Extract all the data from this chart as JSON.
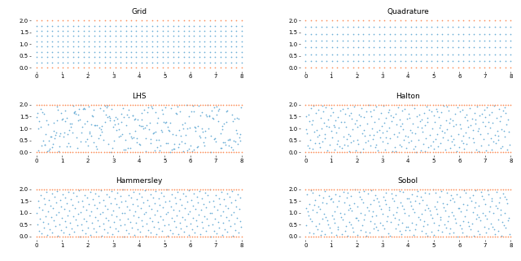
{
  "titles": [
    "Grid",
    "Quadrature",
    "LHS",
    "Halton",
    "Hammersley",
    "Sobol"
  ],
  "xlim": [
    -0.2,
    8.2
  ],
  "ylim": [
    -0.15,
    2.2
  ],
  "xticks": [
    0,
    1,
    2,
    3,
    4,
    5,
    6,
    7,
    8
  ],
  "yticks": [
    0.0,
    0.5,
    1.0,
    1.5,
    2.0
  ],
  "blue_color": "#6baed6",
  "red_color": "#fc8d59",
  "dot_size": 1.5,
  "figsize": [
    6.4,
    3.21
  ],
  "dpi": 100,
  "grid_nx": 40,
  "grid_ny": 10,
  "quad_nx": 40,
  "quad_ny": 8,
  "n_samples": 300,
  "n_border": 80
}
